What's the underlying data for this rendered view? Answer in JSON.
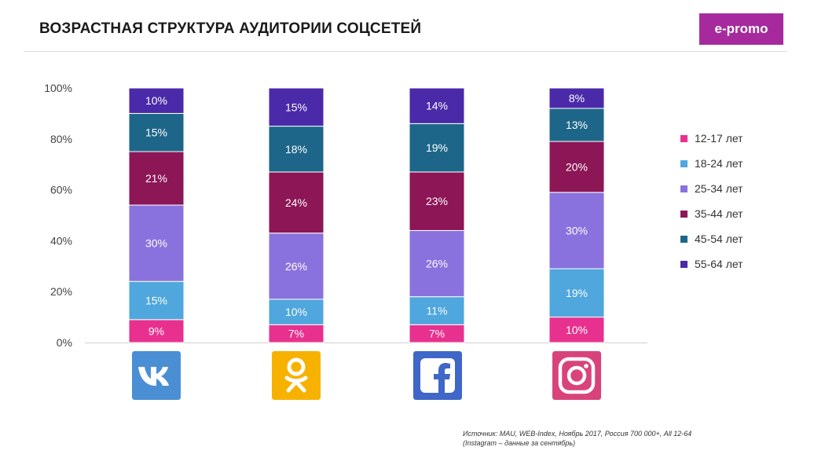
{
  "header": {
    "title": "ВОЗРАСТНАЯ СТРУКТУРА АУДИТОРИИ СОЦСЕТЕЙ",
    "logo_text": "e-promo"
  },
  "colors": {
    "accent": "#a62a9e",
    "series": [
      "#e8318f",
      "#4fa7dd",
      "#8a72de",
      "#8c1656",
      "#1e6689",
      "#4a2aa9"
    ]
  },
  "chart_data": {
    "type": "bar",
    "stacked": true,
    "categories": [
      "ВКонтакте",
      "Одноклассники",
      "Facebook",
      "Instagram"
    ],
    "series": [
      {
        "name": "12-17 лет",
        "values": [
          9,
          7,
          7,
          10
        ]
      },
      {
        "name": "18-24 лет",
        "values": [
          15,
          10,
          11,
          19
        ]
      },
      {
        "name": "25-34 лет",
        "values": [
          30,
          26,
          26,
          30
        ]
      },
      {
        "name": "35-44 лет",
        "values": [
          21,
          24,
          23,
          20
        ]
      },
      {
        "name": "45-54 лет",
        "values": [
          15,
          18,
          19,
          13
        ]
      },
      {
        "name": "55-64 лет",
        "values": [
          10,
          15,
          14,
          8
        ]
      }
    ],
    "y_ticks": [
      "0%",
      "20%",
      "40%",
      "60%",
      "80%",
      "100%"
    ],
    "ylim": [
      0,
      100
    ],
    "legend_position": "right",
    "grid": false
  },
  "icons": [
    "vk-icon",
    "odnoklassniki-icon",
    "facebook-icon",
    "instagram-icon"
  ],
  "source": {
    "line1": "Источник: MAU, WEB-Index, Ноябрь 2017, Россия 700 000+, All 12-64",
    "line2": "(Instagram – данные за сентябрь)"
  }
}
